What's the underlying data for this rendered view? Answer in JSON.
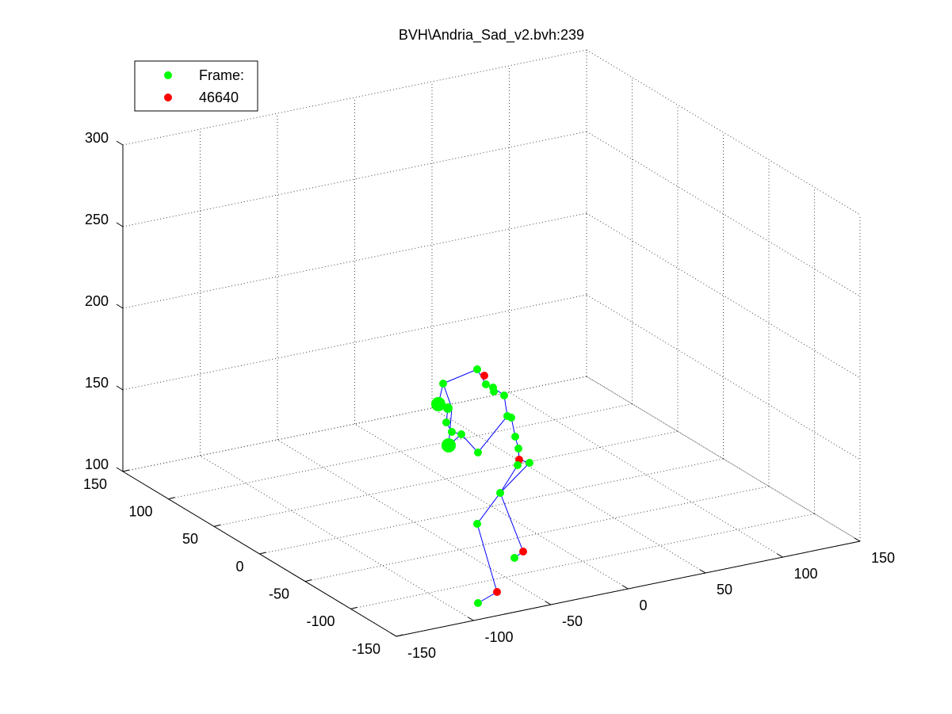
{
  "chart_data": {
    "type": "scatter3d",
    "title": "BVH\\Andria_Sad_v2.bvh:239",
    "legend": [
      {
        "name": "Frame:",
        "color": "#00ff00"
      },
      {
        "name": "46640",
        "color": "#ff0000"
      }
    ],
    "xlim": [
      -150,
      150
    ],
    "xticks": [
      -150,
      -100,
      -50,
      0,
      50,
      100,
      150
    ],
    "ylim": [
      -150,
      150
    ],
    "yticks": [
      -150,
      -100,
      -50,
      0,
      50,
      100,
      150
    ],
    "zlim": [
      100,
      300
    ],
    "zticks": [
      100,
      150,
      200,
      250,
      300
    ],
    "grid": true
  }
}
